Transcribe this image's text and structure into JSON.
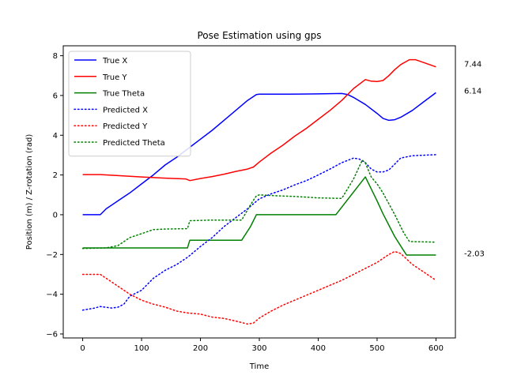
{
  "chart_data": {
    "type": "line",
    "title": "Pose Estimation using gps",
    "xlabel": "Time",
    "ylabel": "Position (m) / Z-rotation (rad)",
    "xlim": [
      -33,
      633
    ],
    "ylim": [
      -6.2,
      8.5
    ],
    "xticks": [
      0,
      100,
      200,
      300,
      400,
      500,
      600
    ],
    "yticks": [
      -6,
      -4,
      -2,
      0,
      2,
      4,
      6,
      8
    ],
    "grid": false,
    "legend_position": "top-left",
    "end_labels": [
      "7.44",
      "6.14",
      "-2.03"
    ],
    "series": [
      {
        "name": "True X",
        "color": "#0000ff",
        "style": "solid",
        "points": [
          [
            0,
            0
          ],
          [
            30,
            0
          ],
          [
            40,
            0.3
          ],
          [
            60,
            0.7
          ],
          [
            80,
            1.1
          ],
          [
            100,
            1.55
          ],
          [
            120,
            2.0
          ],
          [
            140,
            2.5
          ],
          [
            160,
            2.9
          ],
          [
            180,
            3.35
          ],
          [
            200,
            3.8
          ],
          [
            220,
            4.25
          ],
          [
            240,
            4.75
          ],
          [
            260,
            5.25
          ],
          [
            280,
            5.75
          ],
          [
            295,
            6.05
          ],
          [
            300,
            6.07
          ],
          [
            350,
            6.07
          ],
          [
            400,
            6.08
          ],
          [
            440,
            6.1
          ],
          [
            450,
            6.05
          ],
          [
            460,
            5.9
          ],
          [
            480,
            5.55
          ],
          [
            500,
            5.1
          ],
          [
            510,
            4.85
          ],
          [
            520,
            4.75
          ],
          [
            530,
            4.78
          ],
          [
            540,
            4.9
          ],
          [
            560,
            5.25
          ],
          [
            580,
            5.7
          ],
          [
            600,
            6.14
          ]
        ]
      },
      {
        "name": "True Y",
        "color": "#ff0000",
        "style": "solid",
        "points": [
          [
            0,
            2.02
          ],
          [
            30,
            2.02
          ],
          [
            60,
            1.97
          ],
          [
            100,
            1.9
          ],
          [
            140,
            1.84
          ],
          [
            175,
            1.8
          ],
          [
            182,
            1.72
          ],
          [
            200,
            1.82
          ],
          [
            220,
            1.92
          ],
          [
            240,
            2.04
          ],
          [
            260,
            2.18
          ],
          [
            280,
            2.3
          ],
          [
            290,
            2.4
          ],
          [
            300,
            2.65
          ],
          [
            320,
            3.1
          ],
          [
            340,
            3.5
          ],
          [
            360,
            3.95
          ],
          [
            380,
            4.35
          ],
          [
            400,
            4.8
          ],
          [
            420,
            5.25
          ],
          [
            440,
            5.75
          ],
          [
            460,
            6.35
          ],
          [
            480,
            6.8
          ],
          [
            490,
            6.72
          ],
          [
            500,
            6.7
          ],
          [
            510,
            6.75
          ],
          [
            520,
            7.0
          ],
          [
            530,
            7.3
          ],
          [
            540,
            7.55
          ],
          [
            555,
            7.8
          ],
          [
            565,
            7.8
          ],
          [
            580,
            7.65
          ],
          [
            600,
            7.44
          ]
        ]
      },
      {
        "name": "True Theta",
        "color": "#008000",
        "style": "solid",
        "points": [
          [
            0,
            -1.67
          ],
          [
            178,
            -1.67
          ],
          [
            182,
            -1.28
          ],
          [
            270,
            -1.28
          ],
          [
            285,
            -0.6
          ],
          [
            295,
            0
          ],
          [
            430,
            0
          ],
          [
            480,
            1.9
          ],
          [
            490,
            1.3
          ],
          [
            500,
            0.7
          ],
          [
            510,
            0.05
          ],
          [
            530,
            -1.1
          ],
          [
            545,
            -1.8
          ],
          [
            550,
            -2.03
          ],
          [
            600,
            -2.03
          ]
        ]
      },
      {
        "name": "Predicted X",
        "color": "#0000ff",
        "style": "dotted",
        "points": [
          [
            0,
            -4.8
          ],
          [
            20,
            -4.7
          ],
          [
            30,
            -4.62
          ],
          [
            50,
            -4.7
          ],
          [
            60,
            -4.65
          ],
          [
            70,
            -4.5
          ],
          [
            80,
            -4.1
          ],
          [
            100,
            -3.8
          ],
          [
            120,
            -3.2
          ],
          [
            140,
            -2.8
          ],
          [
            160,
            -2.5
          ],
          [
            180,
            -2.1
          ],
          [
            200,
            -1.6
          ],
          [
            220,
            -1.15
          ],
          [
            240,
            -0.6
          ],
          [
            260,
            -0.15
          ],
          [
            280,
            0.3
          ],
          [
            300,
            0.8
          ],
          [
            320,
            1.05
          ],
          [
            340,
            1.25
          ],
          [
            360,
            1.5
          ],
          [
            380,
            1.72
          ],
          [
            400,
            2.0
          ],
          [
            420,
            2.3
          ],
          [
            440,
            2.62
          ],
          [
            460,
            2.85
          ],
          [
            470,
            2.8
          ],
          [
            480,
            2.62
          ],
          [
            490,
            2.3
          ],
          [
            500,
            2.15
          ],
          [
            510,
            2.15
          ],
          [
            520,
            2.25
          ],
          [
            530,
            2.55
          ],
          [
            540,
            2.85
          ],
          [
            560,
            2.97
          ],
          [
            600,
            3.02
          ]
        ]
      },
      {
        "name": "Predicted Y",
        "color": "#ff0000",
        "style": "dotted",
        "points": [
          [
            0,
            -3.0
          ],
          [
            30,
            -3.0
          ],
          [
            40,
            -3.2
          ],
          [
            60,
            -3.6
          ],
          [
            80,
            -4.0
          ],
          [
            100,
            -4.3
          ],
          [
            120,
            -4.5
          ],
          [
            140,
            -4.65
          ],
          [
            160,
            -4.85
          ],
          [
            180,
            -4.95
          ],
          [
            200,
            -5.0
          ],
          [
            220,
            -5.15
          ],
          [
            240,
            -5.22
          ],
          [
            260,
            -5.35
          ],
          [
            280,
            -5.5
          ],
          [
            290,
            -5.45
          ],
          [
            300,
            -5.2
          ],
          [
            320,
            -4.85
          ],
          [
            340,
            -4.55
          ],
          [
            360,
            -4.3
          ],
          [
            380,
            -4.05
          ],
          [
            400,
            -3.8
          ],
          [
            420,
            -3.55
          ],
          [
            440,
            -3.3
          ],
          [
            460,
            -3.0
          ],
          [
            480,
            -2.7
          ],
          [
            500,
            -2.4
          ],
          [
            520,
            -2.0
          ],
          [
            530,
            -1.85
          ],
          [
            540,
            -1.95
          ],
          [
            560,
            -2.5
          ],
          [
            580,
            -2.9
          ],
          [
            600,
            -3.3
          ]
        ]
      },
      {
        "name": "Predicted Theta",
        "color": "#008000",
        "style": "dotted",
        "points": [
          [
            0,
            -1.7
          ],
          [
            40,
            -1.67
          ],
          [
            60,
            -1.55
          ],
          [
            80,
            -1.15
          ],
          [
            100,
            -0.95
          ],
          [
            120,
            -0.75
          ],
          [
            140,
            -0.72
          ],
          [
            178,
            -0.7
          ],
          [
            182,
            -0.3
          ],
          [
            220,
            -0.27
          ],
          [
            270,
            -0.27
          ],
          [
            285,
            0.5
          ],
          [
            295,
            0.95
          ],
          [
            300,
            1.0
          ],
          [
            330,
            0.95
          ],
          [
            360,
            0.92
          ],
          [
            400,
            0.85
          ],
          [
            440,
            0.82
          ],
          [
            460,
            1.8
          ],
          [
            475,
            2.75
          ],
          [
            480,
            2.6
          ],
          [
            490,
            1.9
          ],
          [
            500,
            1.55
          ],
          [
            510,
            1.1
          ],
          [
            530,
            0.0
          ],
          [
            545,
            -0.9
          ],
          [
            555,
            -1.35
          ],
          [
            600,
            -1.38
          ]
        ]
      }
    ]
  }
}
